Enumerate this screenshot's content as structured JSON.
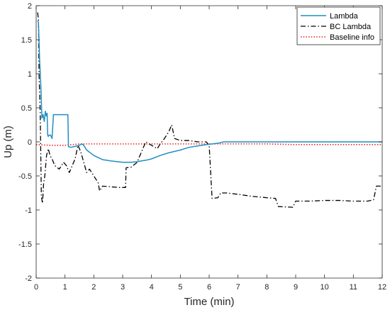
{
  "chart_data": {
    "type": "line",
    "title": "",
    "xlabel": "Time (min)",
    "ylabel": "Up (m)",
    "xlim": [
      0,
      12
    ],
    "ylim": [
      -2,
      2
    ],
    "xticks": [
      0,
      1,
      2,
      3,
      4,
      5,
      6,
      7,
      8,
      9,
      10,
      11,
      12
    ],
    "yticks": [
      -2,
      -1.5,
      -1,
      -0.5,
      0,
      0.5,
      1,
      1.5,
      2
    ],
    "xtick_labels": [
      "0",
      "1",
      "2",
      "3",
      "4",
      "5",
      "6",
      "7",
      "8",
      "9",
      "10",
      "11",
      "12"
    ],
    "ytick_labels": [
      "-2",
      "-1.5",
      "-1",
      "-0.5",
      "0",
      "0.5",
      "1",
      "1.5",
      "2"
    ],
    "grid": false,
    "legend_position": "top-right",
    "series": [
      {
        "name": "Lambda",
        "color": "#1f8fc4",
        "style": "solid",
        "x": [
          0.05,
          0.08,
          0.12,
          0.16,
          0.2,
          0.24,
          0.28,
          0.32,
          0.35,
          0.38,
          0.4,
          0.42,
          0.45,
          0.5,
          0.55,
          0.6,
          0.65,
          0.7,
          0.75,
          0.8,
          1.1,
          1.12,
          1.2,
          1.3,
          1.4,
          1.5,
          1.58,
          1.65,
          1.75,
          2.0,
          2.3,
          2.6,
          3.0,
          3.3,
          3.5,
          3.8,
          4.0,
          4.3,
          4.6,
          5.0,
          5.3,
          5.6,
          5.9,
          6.1,
          6.3,
          6.5,
          7,
          8,
          9,
          10,
          11,
          12
        ],
        "values": [
          1.78,
          1.75,
          1.2,
          0.85,
          0.35,
          0.4,
          0.3,
          0.45,
          0.38,
          0.42,
          0.1,
          0.08,
          0.1,
          0.1,
          0.05,
          0.4,
          0.4,
          0.4,
          0.4,
          0.4,
          0.4,
          -0.07,
          -0.08,
          -0.07,
          -0.06,
          -0.05,
          -0.03,
          -0.05,
          -0.12,
          -0.2,
          -0.26,
          -0.28,
          -0.3,
          -0.3,
          -0.29,
          -0.27,
          -0.25,
          -0.2,
          -0.16,
          -0.12,
          -0.08,
          -0.06,
          -0.04,
          -0.03,
          -0.02,
          0,
          0,
          0,
          0,
          0,
          0,
          0
        ]
      },
      {
        "name": "BC Lambda",
        "color": "#000000",
        "style": "dashdot",
        "x": [
          0.05,
          0.08,
          0.1,
          0.14,
          0.18,
          0.22,
          0.26,
          0.3,
          0.36,
          0.42,
          0.48,
          0.55,
          0.65,
          0.8,
          0.95,
          1.05,
          1.15,
          1.25,
          1.35,
          1.45,
          1.55,
          1.65,
          1.75,
          1.85,
          2.0,
          2.15,
          2.2,
          2.3,
          2.6,
          2.9,
          3.1,
          3.12,
          3.3,
          3.5,
          3.7,
          3.8,
          4.0,
          4.2,
          4.3,
          4.45,
          4.6,
          4.7,
          4.75,
          4.8,
          5.0,
          5.3,
          5.6,
          5.9,
          6.0,
          6.1,
          6.3,
          6.4,
          6.6,
          7.0,
          7.5,
          8.0,
          8.3,
          8.4,
          8.9,
          9.0,
          9.5,
          10.0,
          10.5,
          11.0,
          11.5,
          11.7,
          11.8,
          12.0
        ],
        "values": [
          1.9,
          1.8,
          1.0,
          0.45,
          -0.8,
          -0.9,
          -0.6,
          -0.5,
          -0.2,
          -0.1,
          -0.2,
          -0.25,
          -0.35,
          -0.4,
          -0.3,
          -0.35,
          -0.45,
          -0.35,
          -0.25,
          -0.05,
          -0.15,
          -0.3,
          -0.45,
          -0.4,
          -0.5,
          -0.6,
          -0.72,
          -0.65,
          -0.66,
          -0.67,
          -0.67,
          -0.38,
          -0.37,
          -0.3,
          -0.1,
          0.0,
          -0.05,
          -0.1,
          -0.03,
          0.05,
          0.15,
          0.25,
          0.15,
          0.05,
          0.02,
          0.02,
          0.0,
          0.0,
          -0.05,
          -0.83,
          -0.82,
          -0.75,
          -0.75,
          -0.77,
          -0.8,
          -0.82,
          -0.83,
          -0.95,
          -0.96,
          -0.87,
          -0.87,
          -0.86,
          -0.86,
          -0.87,
          -0.87,
          -0.85,
          -0.65,
          -0.65
        ]
      },
      {
        "name": "Baseline info",
        "color": "#e8211c",
        "style": "dotted",
        "x": [
          0,
          0.5,
          1,
          1.5,
          2,
          3,
          4,
          5,
          6,
          7,
          8,
          9,
          10,
          11,
          12
        ],
        "values": [
          -0.04,
          -0.05,
          -0.05,
          -0.03,
          -0.03,
          -0.03,
          -0.03,
          -0.03,
          -0.03,
          -0.03,
          -0.03,
          -0.04,
          -0.04,
          -0.04,
          -0.04
        ]
      }
    ]
  }
}
